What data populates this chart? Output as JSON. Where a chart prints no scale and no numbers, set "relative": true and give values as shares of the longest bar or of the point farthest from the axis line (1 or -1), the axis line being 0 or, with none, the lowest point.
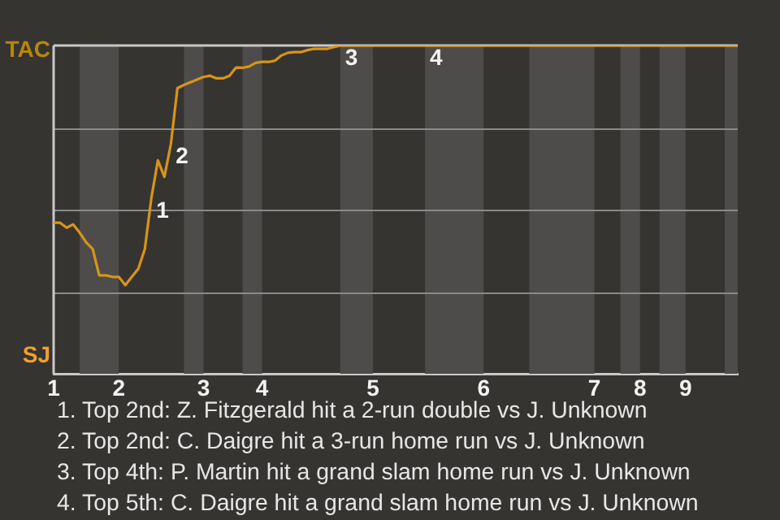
{
  "chart_data": {
    "type": "line",
    "relative": true,
    "categories": [
      "1",
      null,
      null,
      null,
      null,
      null,
      null,
      null,
      null,
      null,
      "2",
      null,
      null,
      null,
      null,
      null,
      null,
      null,
      null,
      null,
      null,
      null,
      null,
      "3",
      null,
      null,
      null,
      null,
      null,
      null,
      null,
      null,
      "4",
      null,
      null,
      null,
      null,
      null,
      null,
      null,
      null,
      null,
      null,
      null,
      null,
      null,
      null,
      null,
      null,
      "5",
      null,
      null,
      null,
      null,
      null,
      null,
      null,
      null,
      null,
      null,
      null,
      null,
      null,
      null,
      null,
      null,
      "6",
      null,
      null,
      null,
      null,
      null,
      null,
      null,
      null,
      null,
      null,
      null,
      null,
      null,
      null,
      null,
      null,
      "7",
      null,
      null,
      null,
      null,
      null,
      null,
      "8",
      null,
      null,
      null,
      null,
      null,
      null,
      "9",
      null,
      null,
      null,
      null,
      null,
      null,
      null,
      null
    ],
    "series": [
      {
        "color": "#d89418",
        "values": [
          0.46,
          0.46,
          0.445,
          0.455,
          0.43,
          0.4,
          0.38,
          0.3,
          0.3,
          0.295,
          0.295,
          0.27,
          0.295,
          0.32,
          0.38,
          0.535,
          0.65,
          0.6,
          0.7,
          0.87,
          0.88,
          0.888,
          0.896,
          0.904,
          0.908,
          0.9,
          0.9,
          0.908,
          0.933,
          0.932,
          0.936,
          0.947,
          0.95,
          0.95,
          0.954,
          0.97,
          0.978,
          0.98,
          0.98,
          0.986,
          0.99,
          0.99,
          0.99,
          0.995,
          1,
          1,
          1,
          1,
          1,
          1,
          1,
          1,
          1,
          1,
          1,
          1,
          1,
          1,
          1,
          1,
          1,
          1,
          1,
          1,
          1,
          1,
          1,
          1,
          1,
          1,
          1,
          1,
          1,
          1,
          1,
          1,
          1,
          1,
          1,
          1,
          1,
          1,
          1,
          1,
          1,
          1,
          1,
          1,
          1,
          1,
          1,
          1,
          1,
          1,
          1,
          1,
          1,
          1,
          1,
          1,
          1,
          1,
          1,
          1,
          1,
          1
        ]
      }
    ],
    "marker": "none",
    "line_style": "solid",
    "legend": false,
    "ref_lines": [
      {
        "axis": "y",
        "value": 0.25,
        "color": "#8a8a8a"
      },
      {
        "axis": "y",
        "value": 0.5,
        "color": "#8a8a8a"
      },
      {
        "axis": "y",
        "value": 0.75,
        "color": "#8a8a8a"
      }
    ],
    "annotations": [
      "TAC",
      "SJ",
      "1",
      "2",
      "3",
      "4",
      "1. Top 2nd: Z. Fitzgerald hit a 2-run double vs J. Unknown",
      "2. Top 2nd: C. Daigre hit a 3-run home run vs J. Unknown",
      "3. Top 4th: P. Martin hit a grand slam home run vs J. Unknown",
      "4. Top 5th: C. Daigre hit a grand slam home run vs J. Unknown"
    ]
  }
}
